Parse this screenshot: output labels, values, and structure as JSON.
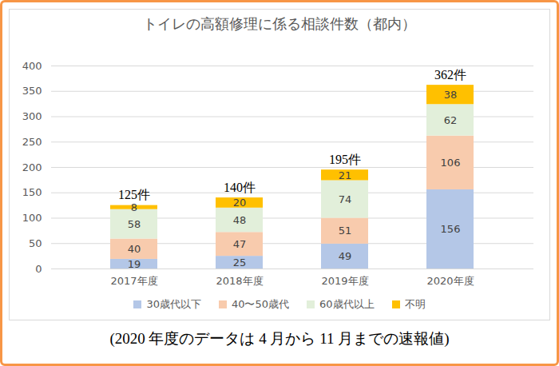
{
  "chart_data": {
    "type": "bar",
    "title": "トイレの高額修理に係る相談件数（都内）",
    "categories": [
      "2017年度",
      "2018年度",
      "2019年度",
      "2020年度"
    ],
    "series": [
      {
        "name": "30歳代以下",
        "color": "#b4c7e7",
        "values": [
          19,
          25,
          49,
          156
        ]
      },
      {
        "name": "40〜50歳代",
        "color": "#f8cbad",
        "values": [
          40,
          47,
          51,
          106
        ]
      },
      {
        "name": "60歳代以上",
        "color": "#e2efda",
        "values": [
          58,
          48,
          74,
          62
        ]
      },
      {
        "name": "不明",
        "color": "#ffc000",
        "values": [
          8,
          20,
          21,
          38
        ]
      }
    ],
    "stacked": true,
    "data_labels": true,
    "ylim": [
      0,
      400
    ],
    "yticks": [
      0,
      50,
      100,
      150,
      200,
      250,
      300,
      350,
      400
    ],
    "grid": true,
    "legend": "bottom",
    "annotations": [
      {
        "category": "2017年度",
        "text": "125件"
      },
      {
        "category": "2018年度",
        "text": "140件"
      },
      {
        "category": "2019年度",
        "text": "195件"
      },
      {
        "category": "2020年度",
        "text": "362件"
      }
    ],
    "caption": "(2020 年度のデータは 4 月から 11 月までの速報値)"
  }
}
